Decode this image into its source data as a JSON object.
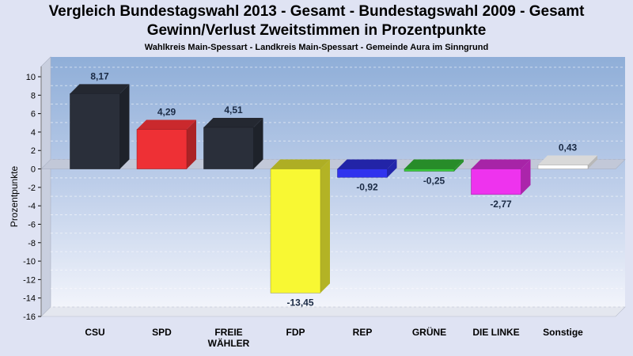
{
  "chart_data": {
    "type": "bar",
    "title": "Vergleich Bundestagswahl 2013 - Gesamt - Bundestagswahl 2009 - Gesamt",
    "title_line2": "Gewinn/Verlust Zweitstimmen in Prozentpunkte",
    "subtitle": "Wahlkreis Main-Spessart - Landkreis Main-Spessart - Gemeinde Aura im Sinngrund",
    "ylabel": "Prozentpunkte",
    "ylim": [
      -16,
      10
    ],
    "yticks": [
      10,
      8,
      6,
      4,
      2,
      0,
      -2,
      -4,
      -6,
      -8,
      -10,
      -12,
      -14,
      -16
    ],
    "grid": true,
    "categories": [
      "CSU",
      "SPD",
      "FREIE WÄHLER",
      "FDP",
      "REP",
      "GRÜNE",
      "DIE LINKE",
      "Sonstige"
    ],
    "category_lines": [
      [
        "CSU"
      ],
      [
        "SPD"
      ],
      [
        "FREIE",
        "WÄHLER"
      ],
      [
        "FDP"
      ],
      [
        "REP"
      ],
      [
        "GRÜNE"
      ],
      [
        "DIE LINKE"
      ],
      [
        "Sonstige"
      ]
    ],
    "values": [
      8.17,
      4.29,
      4.51,
      -13.45,
      -0.92,
      -0.25,
      -2.77,
      0.43
    ],
    "value_labels": [
      "8,17",
      "4,29",
      "4,51",
      "-13,45",
      "-0,92",
      "-0,25",
      "-2,77",
      "0,43"
    ],
    "colors": [
      "#2a2f3a",
      "#ee3035",
      "#2a2f3a",
      "#f8f833",
      "#3033ee",
      "#38c83a",
      "#ee33ee",
      "#ffffff"
    ]
  }
}
